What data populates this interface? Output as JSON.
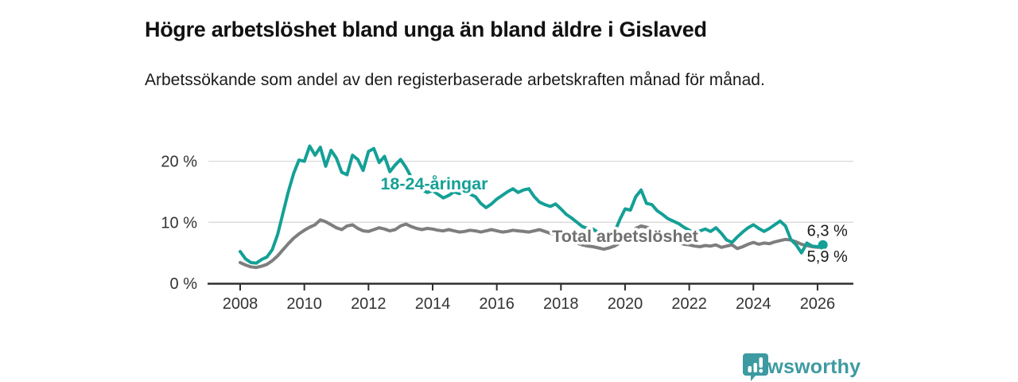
{
  "header": {
    "title": "Högre arbetslöshet bland unga än bland äldre i Gislaved",
    "subtitle": "Arbetssökande som andel av den registerbaserade arbetskraften månad för månad."
  },
  "chart_data": {
    "type": "line",
    "title": "Högre arbetslöshet bland unga än bland äldre i Gislaved",
    "xlabel": "",
    "ylabel": "Arbetssökande som andel av den registerbaserade arbetskraften",
    "x_start": 2008.0,
    "x_step": 0.16667,
    "xlim": [
      2007.0,
      2027.1
    ],
    "ylim": [
      0,
      25.5
    ],
    "grid": "horizontal",
    "yticks": [
      {
        "v": 0,
        "label": "0 %"
      },
      {
        "v": 10,
        "label": "10 %"
      },
      {
        "v": 20,
        "label": "20 %"
      }
    ],
    "xticks": [
      2008,
      2010,
      2012,
      2014,
      2016,
      2018,
      2020,
      2022,
      2024,
      2026
    ],
    "axis_color": "#2e2e2e",
    "grid_color": "#d9d9d9",
    "tick_label_color": "#333333",
    "end_label_color": "#1a1a1a",
    "series": [
      {
        "name": "18-24-åringar",
        "color": "#14a096",
        "label_color": "#14a096",
        "line_label": {
          "text": "18-24-åringar",
          "x": 2014.05,
          "y": 15.4
        },
        "end_label": "6,3 %",
        "end_value": 6.3,
        "end_dot": true,
        "values": [
          5.2,
          4.0,
          3.4,
          3.3,
          3.9,
          4.3,
          5.5,
          8.0,
          11.5,
          15.0,
          18.0,
          20.2,
          20.0,
          22.5,
          21.0,
          22.3,
          19.2,
          21.8,
          20.5,
          18.2,
          17.8,
          21.0,
          20.3,
          18.5,
          21.6,
          22.1,
          19.8,
          20.8,
          18.3,
          19.4,
          20.3,
          19.0,
          17.4,
          16.2,
          15.3,
          14.9,
          15.2,
          14.6,
          14.0,
          14.4,
          15.0,
          14.7,
          15.1,
          14.6,
          14.2,
          13.1,
          12.4,
          13.0,
          13.8,
          14.4,
          15.0,
          15.5,
          14.9,
          15.3,
          15.5,
          14.2,
          13.3,
          12.9,
          12.6,
          13.0,
          12.2,
          11.3,
          10.7,
          10.0,
          9.3,
          9.0,
          8.9,
          8.3,
          7.4,
          7.0,
          8.3,
          10.4,
          12.2,
          12.0,
          14.2,
          15.3,
          13.1,
          12.9,
          11.9,
          11.3,
          10.6,
          10.2,
          9.8,
          9.2,
          8.7,
          8.2,
          8.6,
          8.9,
          8.5,
          9.1,
          8.2,
          7.1,
          6.7,
          7.6,
          8.4,
          9.1,
          9.6,
          9.0,
          8.5,
          9.0,
          9.6,
          10.2,
          9.4,
          7.2,
          6.3,
          5.0,
          6.6,
          6.1,
          6.0,
          6.3
        ]
      },
      {
        "name": "Total arbetslöshet",
        "color": "#7e7e7e",
        "label_color": "#6f6f6f",
        "line_label": {
          "text": "Total arbetslöshet",
          "x": 2020.0,
          "y": 6.8
        },
        "end_label": "5,9 %",
        "end_value": 5.9,
        "end_dot": false,
        "values": [
          3.4,
          3.0,
          2.7,
          2.6,
          2.8,
          3.1,
          3.7,
          4.5,
          5.5,
          6.5,
          7.4,
          8.1,
          8.7,
          9.2,
          9.6,
          10.4,
          10.1,
          9.6,
          9.1,
          8.8,
          9.4,
          9.6,
          9.0,
          8.6,
          8.5,
          8.8,
          9.1,
          8.9,
          8.6,
          8.8,
          9.4,
          9.7,
          9.3,
          9.0,
          8.8,
          9.0,
          8.9,
          8.7,
          8.6,
          8.8,
          8.6,
          8.4,
          8.5,
          8.7,
          8.6,
          8.4,
          8.6,
          8.8,
          8.6,
          8.4,
          8.5,
          8.7,
          8.6,
          8.5,
          8.4,
          8.6,
          8.8,
          8.5,
          8.2,
          8.0,
          7.9,
          7.5,
          7.0,
          6.6,
          6.3,
          6.1,
          6.0,
          5.8,
          5.6,
          5.8,
          6.1,
          6.6,
          7.3,
          8.2,
          9.0,
          9.4,
          9.2,
          8.9,
          8.5,
          8.1,
          7.6,
          7.1,
          6.7,
          6.4,
          6.3,
          6.1,
          6.0,
          6.2,
          6.1,
          6.3,
          5.9,
          6.1,
          6.3,
          5.7,
          6.0,
          6.4,
          6.7,
          6.4,
          6.6,
          6.5,
          6.8,
          7.0,
          7.2,
          7.1,
          6.8,
          6.4,
          6.2,
          6.0,
          5.9,
          5.9
        ]
      }
    ]
  },
  "footer": {
    "brand": "Newsworthy",
    "brand_color": "#3d9aa1"
  }
}
